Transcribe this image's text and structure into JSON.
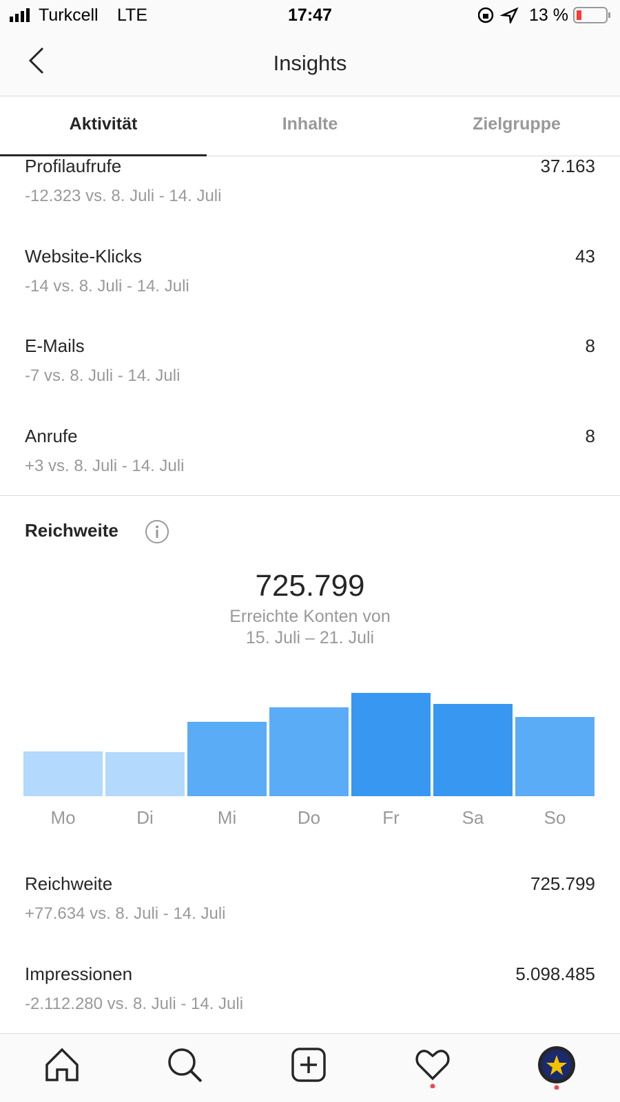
{
  "status": {
    "carrier": "Turkcell",
    "network": "LTE",
    "time": "17:47",
    "battery": "13 %"
  },
  "header": {
    "title": "Insights"
  },
  "tabs": [
    "Aktivität",
    "Inhalte",
    "Zielgruppe"
  ],
  "metrics": [
    {
      "label": "Profilaufrufe",
      "value": "37.163",
      "comparison": "-12.323 vs. 8. Juli - 14. Juli"
    },
    {
      "label": "Website-Klicks",
      "value": "43",
      "comparison": "-14 vs. 8. Juli - 14. Juli"
    },
    {
      "label": "E-Mails",
      "value": "8",
      "comparison": "-7 vs. 8. Juli - 14. Juli"
    },
    {
      "label": "Anrufe",
      "value": "8",
      "comparison": "+3 vs. 8. Juli - 14. Juli"
    }
  ],
  "reach": {
    "title": "Reichweite",
    "total": "725.799",
    "caption": [
      "Erreichte Konten von",
      "15. Juli – 21. Juli"
    ],
    "chart": {
      "type": "bar",
      "categories": [
        "Mo",
        "Di",
        "Mi",
        "Do",
        "Fr",
        "Sa",
        "So"
      ],
      "values": [
        64,
        63,
        106,
        126,
        147,
        131,
        113
      ],
      "colors": [
        "#b3d9fc",
        "#b3d9fc",
        "#5aacf7",
        "#5aacf7",
        "#3897f0",
        "#3897f0",
        "#5aacf7"
      ]
    }
  },
  "metrics2": [
    {
      "label": "Reichweite",
      "value": "725.799",
      "comparison": "+77.634 vs. 8. Juli - 14. Juli"
    },
    {
      "label": "Impressionen",
      "value": "5.098.485",
      "comparison": "-2.112.280 vs. 8. Juli - 14. Juli"
    }
  ]
}
